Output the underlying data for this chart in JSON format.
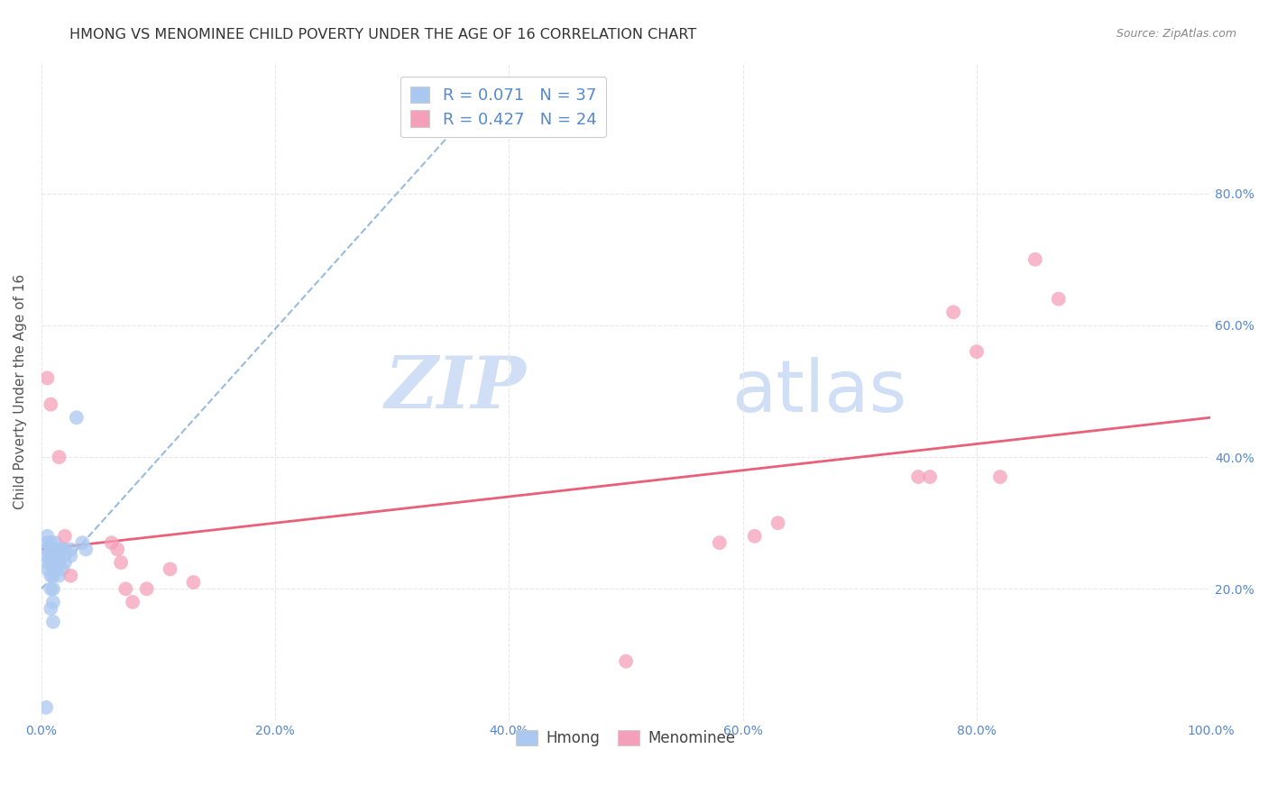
{
  "title": "HMONG VS MENOMINEE CHILD POVERTY UNDER THE AGE OF 16 CORRELATION CHART",
  "source": "Source: ZipAtlas.com",
  "ylabel": "Child Poverty Under the Age of 16",
  "xlim": [
    0.0,
    1.0
  ],
  "ylim": [
    0.0,
    1.0
  ],
  "xticks": [
    0.0,
    0.2,
    0.4,
    0.6,
    0.8,
    1.0
  ],
  "xticklabels": [
    "0.0%",
    "20.0%",
    "40.0%",
    "60.0%",
    "80.0%",
    "100.0%"
  ],
  "right_yticks": [
    0.2,
    0.4,
    0.6,
    0.8
  ],
  "right_yticklabels": [
    "20.0%",
    "40.0%",
    "60.0%",
    "80.0%"
  ],
  "background_color": "#ffffff",
  "grid_color": "#e8e8e8",
  "hmong_color": "#aac8f0",
  "menominee_color": "#f5a0bb",
  "hmong_R": 0.071,
  "hmong_N": 37,
  "menominee_R": 0.427,
  "menominee_N": 24,
  "legend_label_hmong": "Hmong",
  "legend_label_menominee": "Menominee",
  "tick_color": "#5588cc",
  "hmong_scatter_x": [
    0.005,
    0.005,
    0.005,
    0.005,
    0.005,
    0.005,
    0.008,
    0.008,
    0.008,
    0.008,
    0.008,
    0.008,
    0.008,
    0.01,
    0.01,
    0.01,
    0.01,
    0.01,
    0.01,
    0.01,
    0.012,
    0.012,
    0.012,
    0.015,
    0.015,
    0.015,
    0.015,
    0.018,
    0.018,
    0.02,
    0.02,
    0.025,
    0.025,
    0.03,
    0.035,
    0.038,
    0.004
  ],
  "hmong_scatter_y": [
    0.28,
    0.27,
    0.26,
    0.25,
    0.24,
    0.23,
    0.27,
    0.26,
    0.25,
    0.24,
    0.22,
    0.2,
    0.17,
    0.26,
    0.25,
    0.24,
    0.22,
    0.2,
    0.18,
    0.15,
    0.27,
    0.25,
    0.23,
    0.26,
    0.25,
    0.24,
    0.22,
    0.26,
    0.23,
    0.26,
    0.24,
    0.26,
    0.25,
    0.46,
    0.27,
    0.26,
    0.02
  ],
  "menominee_scatter_x": [
    0.005,
    0.008,
    0.015,
    0.02,
    0.025,
    0.06,
    0.065,
    0.068,
    0.072,
    0.078,
    0.09,
    0.11,
    0.13,
    0.5,
    0.58,
    0.61,
    0.63,
    0.75,
    0.76,
    0.78,
    0.8,
    0.82,
    0.85,
    0.87
  ],
  "menominee_scatter_y": [
    0.52,
    0.48,
    0.4,
    0.28,
    0.22,
    0.27,
    0.26,
    0.24,
    0.2,
    0.18,
    0.2,
    0.23,
    0.21,
    0.09,
    0.27,
    0.28,
    0.3,
    0.37,
    0.37,
    0.62,
    0.56,
    0.37,
    0.7,
    0.64
  ],
  "hmong_trendline_x": [
    0.0,
    0.38
  ],
  "hmong_trendline_y": [
    0.2,
    0.95
  ],
  "menominee_trendline_x": [
    0.0,
    1.0
  ],
  "menominee_trendline_y": [
    0.26,
    0.46
  ],
  "trendline_hmong_color": "#99bbdd",
  "trendline_menominee_color": "#e8607a",
  "watermark_zip": "ZIP",
  "watermark_atlas": "atlas",
  "watermark_color": "#d0dff5",
  "title_fontsize": 11.5,
  "axis_label_fontsize": 11,
  "tick_fontsize": 10,
  "legend_fontsize": 13
}
